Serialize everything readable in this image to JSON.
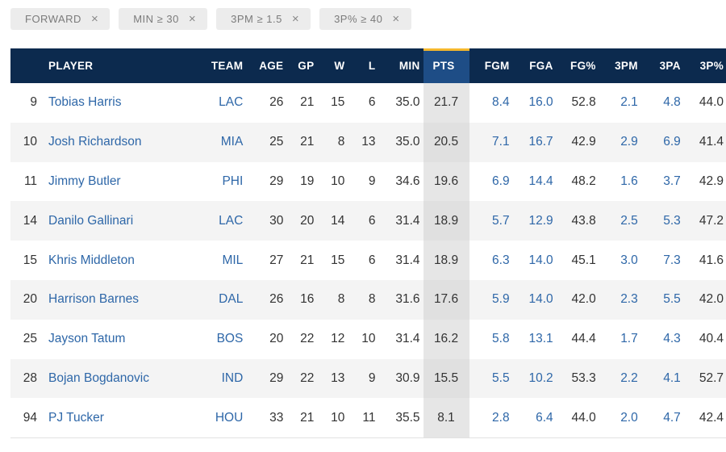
{
  "filters": [
    {
      "label": "FORWARD"
    },
    {
      "label": "MIN ≥ 30"
    },
    {
      "label": "3PM ≥ 1.5"
    },
    {
      "label": "3P% ≥ 40"
    }
  ],
  "remove_symbol": "×",
  "sorted_column": "PTS",
  "colors": {
    "header_bg": "#0c2a4e",
    "sorted_header_bg": "#1e4d86",
    "sort_indicator": "#f5b82e",
    "link": "#2e67a8",
    "row_alt": "#f4f4f4"
  },
  "table": {
    "headers": [
      "",
      "PLAYER",
      "TEAM",
      "AGE",
      "GP",
      "W",
      "L",
      "MIN",
      "PTS",
      "FGM",
      "FGA",
      "FG%",
      "3PM",
      "3PA",
      "3P%"
    ],
    "rows": [
      [
        "9",
        "Tobias Harris",
        "LAC",
        "26",
        "21",
        "15",
        "6",
        "35.0",
        "21.7",
        "8.4",
        "16.0",
        "52.8",
        "2.1",
        "4.8",
        "44.0"
      ],
      [
        "10",
        "Josh Richardson",
        "MIA",
        "25",
        "21",
        "8",
        "13",
        "35.0",
        "20.5",
        "7.1",
        "16.7",
        "42.9",
        "2.9",
        "6.9",
        "41.4"
      ],
      [
        "11",
        "Jimmy Butler",
        "PHI",
        "29",
        "19",
        "10",
        "9",
        "34.6",
        "19.6",
        "6.9",
        "14.4",
        "48.2",
        "1.6",
        "3.7",
        "42.9"
      ],
      [
        "14",
        "Danilo Gallinari",
        "LAC",
        "30",
        "20",
        "14",
        "6",
        "31.4",
        "18.9",
        "5.7",
        "12.9",
        "43.8",
        "2.5",
        "5.3",
        "47.2"
      ],
      [
        "15",
        "Khris Middleton",
        "MIL",
        "27",
        "21",
        "15",
        "6",
        "31.4",
        "18.9",
        "6.3",
        "14.0",
        "45.1",
        "3.0",
        "7.3",
        "41.6"
      ],
      [
        "20",
        "Harrison Barnes",
        "DAL",
        "26",
        "16",
        "8",
        "8",
        "31.6",
        "17.6",
        "5.9",
        "14.0",
        "42.0",
        "2.3",
        "5.5",
        "42.0"
      ],
      [
        "25",
        "Jayson Tatum",
        "BOS",
        "20",
        "22",
        "12",
        "10",
        "31.4",
        "16.2",
        "5.8",
        "13.1",
        "44.4",
        "1.7",
        "4.3",
        "40.4"
      ],
      [
        "28",
        "Bojan Bogdanovic",
        "IND",
        "29",
        "22",
        "13",
        "9",
        "30.9",
        "15.5",
        "5.5",
        "10.2",
        "53.3",
        "2.2",
        "4.1",
        "52.7"
      ],
      [
        "94",
        "PJ Tucker",
        "HOU",
        "33",
        "21",
        "10",
        "11",
        "35.5",
        "8.1",
        "2.8",
        "6.4",
        "44.0",
        "2.0",
        "4.7",
        "42.4"
      ]
    ]
  }
}
